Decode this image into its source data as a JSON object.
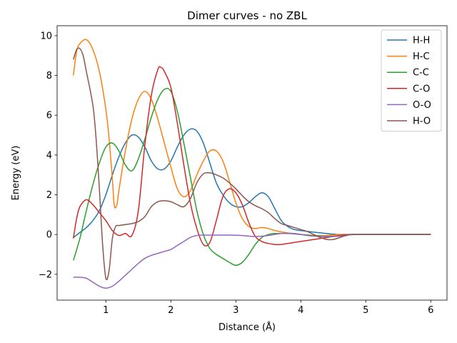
{
  "chart_data": {
    "type": "line",
    "title": "Dimer curves - no ZBL",
    "xlabel": "Distance (Å)",
    "ylabel": "Energy (eV)",
    "xlim": [
      0.25,
      6.25
    ],
    "ylim": [
      -3.3,
      10.5
    ],
    "xticks": [
      1,
      2,
      3,
      4,
      5,
      6
    ],
    "yticks": [
      -2,
      0,
      2,
      4,
      6,
      8,
      10
    ],
    "legend_position": "top-right",
    "grid": false,
    "series": [
      {
        "name": "H-H",
        "color": "#1f77b4",
        "points": [
          [
            0.5,
            -0.15
          ],
          [
            0.6,
            0.1
          ],
          [
            0.7,
            0.35
          ],
          [
            0.8,
            0.7
          ],
          [
            0.9,
            1.2
          ],
          [
            1.0,
            2.0
          ],
          [
            1.1,
            3.0
          ],
          [
            1.2,
            3.9
          ],
          [
            1.3,
            4.6
          ],
          [
            1.4,
            5.0
          ],
          [
            1.5,
            4.9
          ],
          [
            1.6,
            4.4
          ],
          [
            1.7,
            3.7
          ],
          [
            1.8,
            3.3
          ],
          [
            1.9,
            3.3
          ],
          [
            2.0,
            3.7
          ],
          [
            2.1,
            4.4
          ],
          [
            2.2,
            5.0
          ],
          [
            2.3,
            5.3
          ],
          [
            2.4,
            5.2
          ],
          [
            2.5,
            4.6
          ],
          [
            2.6,
            3.6
          ],
          [
            2.7,
            2.6
          ],
          [
            2.8,
            2.0
          ],
          [
            2.9,
            1.6
          ],
          [
            3.0,
            1.4
          ],
          [
            3.1,
            1.4
          ],
          [
            3.2,
            1.6
          ],
          [
            3.3,
            1.9
          ],
          [
            3.4,
            2.1
          ],
          [
            3.5,
            1.9
          ],
          [
            3.6,
            1.3
          ],
          [
            3.7,
            0.7
          ],
          [
            3.8,
            0.4
          ],
          [
            3.9,
            0.25
          ],
          [
            4.0,
            0.2
          ],
          [
            4.2,
            0.12
          ],
          [
            4.4,
            0.05
          ],
          [
            4.6,
            0.0
          ],
          [
            4.8,
            0.0
          ],
          [
            5.0,
            0.0
          ],
          [
            6.0,
            0.0
          ]
        ]
      },
      {
        "name": "H-C",
        "color": "#ff7f0e",
        "points": [
          [
            0.5,
            8.0
          ],
          [
            0.55,
            9.2
          ],
          [
            0.6,
            9.6
          ],
          [
            0.7,
            9.8
          ],
          [
            0.8,
            9.3
          ],
          [
            0.9,
            8.2
          ],
          [
            1.0,
            6.3
          ],
          [
            1.05,
            4.8
          ],
          [
            1.1,
            2.8
          ],
          [
            1.13,
            1.45
          ],
          [
            1.17,
            1.5
          ],
          [
            1.2,
            2.2
          ],
          [
            1.3,
            4.2
          ],
          [
            1.4,
            5.8
          ],
          [
            1.5,
            6.8
          ],
          [
            1.6,
            7.2
          ],
          [
            1.7,
            6.8
          ],
          [
            1.8,
            5.8
          ],
          [
            1.9,
            4.6
          ],
          [
            2.0,
            3.4
          ],
          [
            2.1,
            2.3
          ],
          [
            2.2,
            1.9
          ],
          [
            2.3,
            2.2
          ],
          [
            2.4,
            3.0
          ],
          [
            2.5,
            3.7
          ],
          [
            2.6,
            4.2
          ],
          [
            2.7,
            4.2
          ],
          [
            2.8,
            3.7
          ],
          [
            2.9,
            2.7
          ],
          [
            3.0,
            1.6
          ],
          [
            3.1,
            0.8
          ],
          [
            3.2,
            0.4
          ],
          [
            3.3,
            0.3
          ],
          [
            3.4,
            0.35
          ],
          [
            3.5,
            0.3
          ],
          [
            3.6,
            0.2
          ],
          [
            3.8,
            0.08
          ],
          [
            4.0,
            0.0
          ],
          [
            4.2,
            -0.05
          ],
          [
            4.4,
            -0.05
          ],
          [
            4.6,
            0.0
          ],
          [
            5.0,
            0.0
          ],
          [
            6.0,
            0.0
          ]
        ]
      },
      {
        "name": "C-C",
        "color": "#2ca02c",
        "points": [
          [
            0.5,
            -1.3
          ],
          [
            0.6,
            -0.2
          ],
          [
            0.7,
            1.2
          ],
          [
            0.8,
            2.5
          ],
          [
            0.9,
            3.6
          ],
          [
            1.0,
            4.4
          ],
          [
            1.1,
            4.6
          ],
          [
            1.2,
            4.2
          ],
          [
            1.3,
            3.5
          ],
          [
            1.4,
            3.2
          ],
          [
            1.5,
            3.8
          ],
          [
            1.6,
            4.8
          ],
          [
            1.7,
            5.9
          ],
          [
            1.8,
            6.8
          ],
          [
            1.9,
            7.3
          ],
          [
            2.0,
            7.2
          ],
          [
            2.1,
            6.2
          ],
          [
            2.2,
            4.6
          ],
          [
            2.3,
            2.9
          ],
          [
            2.4,
            1.2
          ],
          [
            2.5,
            0.0
          ],
          [
            2.6,
            -0.7
          ],
          [
            2.7,
            -1.0
          ],
          [
            2.8,
            -1.2
          ],
          [
            2.9,
            -1.4
          ],
          [
            3.0,
            -1.55
          ],
          [
            3.1,
            -1.4
          ],
          [
            3.2,
            -1.0
          ],
          [
            3.3,
            -0.5
          ],
          [
            3.4,
            -0.15
          ],
          [
            3.5,
            0.0
          ],
          [
            3.6,
            0.05
          ],
          [
            3.8,
            0.05
          ],
          [
            4.0,
            0.0
          ],
          [
            4.2,
            -0.05
          ],
          [
            4.4,
            -0.1
          ],
          [
            4.6,
            -0.05
          ],
          [
            4.8,
            0.0
          ],
          [
            6.0,
            0.0
          ]
        ]
      },
      {
        "name": "C-O",
        "color": "#d62728",
        "points": [
          [
            0.5,
            -0.2
          ],
          [
            0.55,
            0.8
          ],
          [
            0.6,
            1.4
          ],
          [
            0.7,
            1.75
          ],
          [
            0.8,
            1.5
          ],
          [
            0.9,
            1.1
          ],
          [
            1.0,
            0.7
          ],
          [
            1.1,
            0.2
          ],
          [
            1.2,
            -0.05
          ],
          [
            1.3,
            0.05
          ],
          [
            1.4,
            -0.05
          ],
          [
            1.5,
            1.2
          ],
          [
            1.6,
            4.5
          ],
          [
            1.7,
            7.0
          ],
          [
            1.8,
            8.3
          ],
          [
            1.85,
            8.4
          ],
          [
            1.9,
            8.2
          ],
          [
            2.0,
            7.4
          ],
          [
            2.1,
            5.6
          ],
          [
            2.2,
            3.5
          ],
          [
            2.3,
            1.6
          ],
          [
            2.4,
            0.3
          ],
          [
            2.5,
            -0.5
          ],
          [
            2.6,
            -0.4
          ],
          [
            2.7,
            0.7
          ],
          [
            2.8,
            1.9
          ],
          [
            2.9,
            2.3
          ],
          [
            3.0,
            2.1
          ],
          [
            3.1,
            1.5
          ],
          [
            3.2,
            0.6
          ],
          [
            3.3,
            -0.1
          ],
          [
            3.4,
            -0.35
          ],
          [
            3.5,
            -0.45
          ],
          [
            3.6,
            -0.5
          ],
          [
            3.7,
            -0.5
          ],
          [
            3.8,
            -0.45
          ],
          [
            4.0,
            -0.35
          ],
          [
            4.2,
            -0.25
          ],
          [
            4.4,
            -0.15
          ],
          [
            4.6,
            -0.05
          ],
          [
            4.8,
            0.0
          ],
          [
            6.0,
            0.0
          ]
        ]
      },
      {
        "name": "O-O",
        "color": "#9467bd",
        "points": [
          [
            0.5,
            -2.15
          ],
          [
            0.6,
            -2.15
          ],
          [
            0.7,
            -2.2
          ],
          [
            0.8,
            -2.4
          ],
          [
            0.9,
            -2.6
          ],
          [
            1.0,
            -2.7
          ],
          [
            1.1,
            -2.6
          ],
          [
            1.2,
            -2.35
          ],
          [
            1.3,
            -2.05
          ],
          [
            1.4,
            -1.75
          ],
          [
            1.5,
            -1.45
          ],
          [
            1.6,
            -1.2
          ],
          [
            1.7,
            -1.05
          ],
          [
            1.8,
            -0.95
          ],
          [
            1.9,
            -0.85
          ],
          [
            2.0,
            -0.75
          ],
          [
            2.1,
            -0.55
          ],
          [
            2.2,
            -0.35
          ],
          [
            2.3,
            -0.15
          ],
          [
            2.4,
            -0.05
          ],
          [
            2.5,
            -0.03
          ],
          [
            2.7,
            -0.03
          ],
          [
            2.9,
            -0.03
          ],
          [
            3.1,
            -0.05
          ],
          [
            3.3,
            -0.1
          ],
          [
            3.5,
            -0.05
          ],
          [
            3.7,
            0.05
          ],
          [
            3.9,
            0.05
          ],
          [
            4.1,
            -0.05
          ],
          [
            4.3,
            -0.1
          ],
          [
            4.5,
            -0.1
          ],
          [
            4.7,
            -0.05
          ],
          [
            4.9,
            0.0
          ],
          [
            6.0,
            0.0
          ]
        ]
      },
      {
        "name": "H-O",
        "color": "#8c564b",
        "points": [
          [
            0.5,
            8.8
          ],
          [
            0.55,
            9.3
          ],
          [
            0.6,
            9.35
          ],
          [
            0.65,
            9.0
          ],
          [
            0.7,
            8.2
          ],
          [
            0.8,
            6.5
          ],
          [
            0.85,
            4.8
          ],
          [
            0.9,
            2.3
          ],
          [
            0.95,
            -0.5
          ],
          [
            1.0,
            -2.2
          ],
          [
            1.05,
            -1.8
          ],
          [
            1.1,
            -0.2
          ],
          [
            1.15,
            0.4
          ],
          [
            1.2,
            0.45
          ],
          [
            1.3,
            0.5
          ],
          [
            1.4,
            0.55
          ],
          [
            1.5,
            0.65
          ],
          [
            1.6,
            0.9
          ],
          [
            1.7,
            1.4
          ],
          [
            1.8,
            1.65
          ],
          [
            1.9,
            1.7
          ],
          [
            2.0,
            1.65
          ],
          [
            2.1,
            1.5
          ],
          [
            2.2,
            1.4
          ],
          [
            2.3,
            1.8
          ],
          [
            2.4,
            2.6
          ],
          [
            2.5,
            3.05
          ],
          [
            2.6,
            3.1
          ],
          [
            2.7,
            3.0
          ],
          [
            2.8,
            2.85
          ],
          [
            2.9,
            2.6
          ],
          [
            3.0,
            2.3
          ],
          [
            3.1,
            1.95
          ],
          [
            3.2,
            1.65
          ],
          [
            3.3,
            1.45
          ],
          [
            3.4,
            1.3
          ],
          [
            3.5,
            1.1
          ],
          [
            3.6,
            0.8
          ],
          [
            3.7,
            0.55
          ],
          [
            3.8,
            0.45
          ],
          [
            3.9,
            0.35
          ],
          [
            4.0,
            0.25
          ],
          [
            4.1,
            0.15
          ],
          [
            4.2,
            0.0
          ],
          [
            4.3,
            -0.15
          ],
          [
            4.4,
            -0.25
          ],
          [
            4.5,
            -0.25
          ],
          [
            4.6,
            -0.15
          ],
          [
            4.7,
            -0.05
          ],
          [
            4.8,
            0.0
          ],
          [
            6.0,
            0.0
          ]
        ]
      }
    ]
  }
}
